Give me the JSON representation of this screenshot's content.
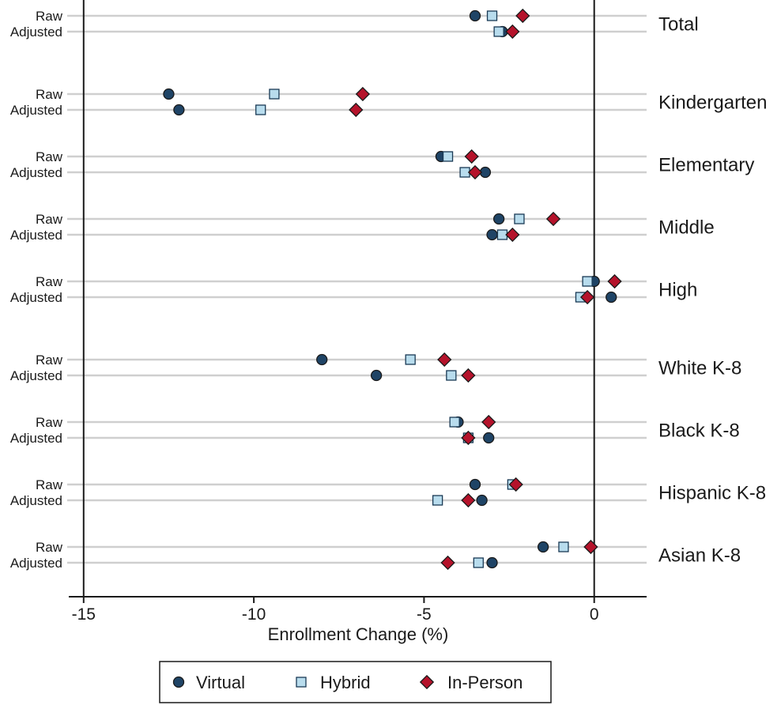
{
  "chart_data": {
    "type": "scatter",
    "xlabel": "Enrollment Change (%)",
    "xlim": [
      -15,
      1.5
    ],
    "xticks": [
      -15,
      -10,
      -5,
      0
    ],
    "xtick_labels": [
      "-15",
      "-10",
      "-5",
      "0"
    ],
    "grid": "horizontal row lines",
    "legend_position": "bottom",
    "reference_line": 0,
    "row_labels": [
      "Raw",
      "Adjusted"
    ],
    "series": [
      {
        "name": "Virtual",
        "marker": "circle",
        "color": "#1f4466"
      },
      {
        "name": "Hybrid",
        "marker": "square",
        "color": "#b8dced"
      },
      {
        "name": "In-Person",
        "marker": "diamond",
        "color": "#b5132b"
      }
    ],
    "groups": [
      {
        "name": "Total",
        "raw": {
          "Virtual": -3.5,
          "Hybrid": -3.0,
          "In-Person": -2.1
        },
        "adjusted": {
          "Virtual": -2.7,
          "Hybrid": -2.8,
          "In-Person": -2.4
        }
      },
      {
        "name": "Kindergarten",
        "raw": {
          "Virtual": -12.5,
          "Hybrid": -9.4,
          "In-Person": -6.8
        },
        "adjusted": {
          "Virtual": -12.2,
          "Hybrid": -9.8,
          "In-Person": -7.0
        }
      },
      {
        "name": "Elementary",
        "raw": {
          "Virtual": -4.5,
          "Hybrid": -4.3,
          "In-Person": -3.6
        },
        "adjusted": {
          "Virtual": -3.2,
          "Hybrid": -3.8,
          "In-Person": -3.5
        }
      },
      {
        "name": "Middle",
        "raw": {
          "Virtual": -2.8,
          "Hybrid": -2.2,
          "In-Person": -1.2
        },
        "adjusted": {
          "Virtual": -3.0,
          "Hybrid": -2.7,
          "In-Person": -2.4
        }
      },
      {
        "name": "High",
        "raw": {
          "Virtual": 0.0,
          "Hybrid": -0.2,
          "In-Person": 0.6
        },
        "adjusted": {
          "Virtual": 0.5,
          "Hybrid": -0.4,
          "In-Person": -0.2
        }
      },
      {
        "name": "White K-8",
        "raw": {
          "Virtual": -8.0,
          "Hybrid": -5.4,
          "In-Person": -4.4
        },
        "adjusted": {
          "Virtual": -6.4,
          "Hybrid": -4.2,
          "In-Person": -3.7
        }
      },
      {
        "name": "Black K-8",
        "raw": {
          "Virtual": -4.0,
          "Hybrid": -4.1,
          "In-Person": -3.1
        },
        "adjusted": {
          "Virtual": -3.1,
          "Hybrid": -3.7,
          "In-Person": -3.7
        }
      },
      {
        "name": "Hispanic K-8",
        "raw": {
          "Virtual": -3.5,
          "Hybrid": -2.4,
          "In-Person": -2.3
        },
        "adjusted": {
          "Virtual": -3.3,
          "Hybrid": -4.6,
          "In-Person": -3.7
        }
      },
      {
        "name": "Asian K-8",
        "raw": {
          "Virtual": -1.5,
          "Hybrid": -0.9,
          "In-Person": -0.1
        },
        "adjusted": {
          "Virtual": -3.0,
          "Hybrid": -3.4,
          "In-Person": -4.3
        }
      }
    ]
  }
}
